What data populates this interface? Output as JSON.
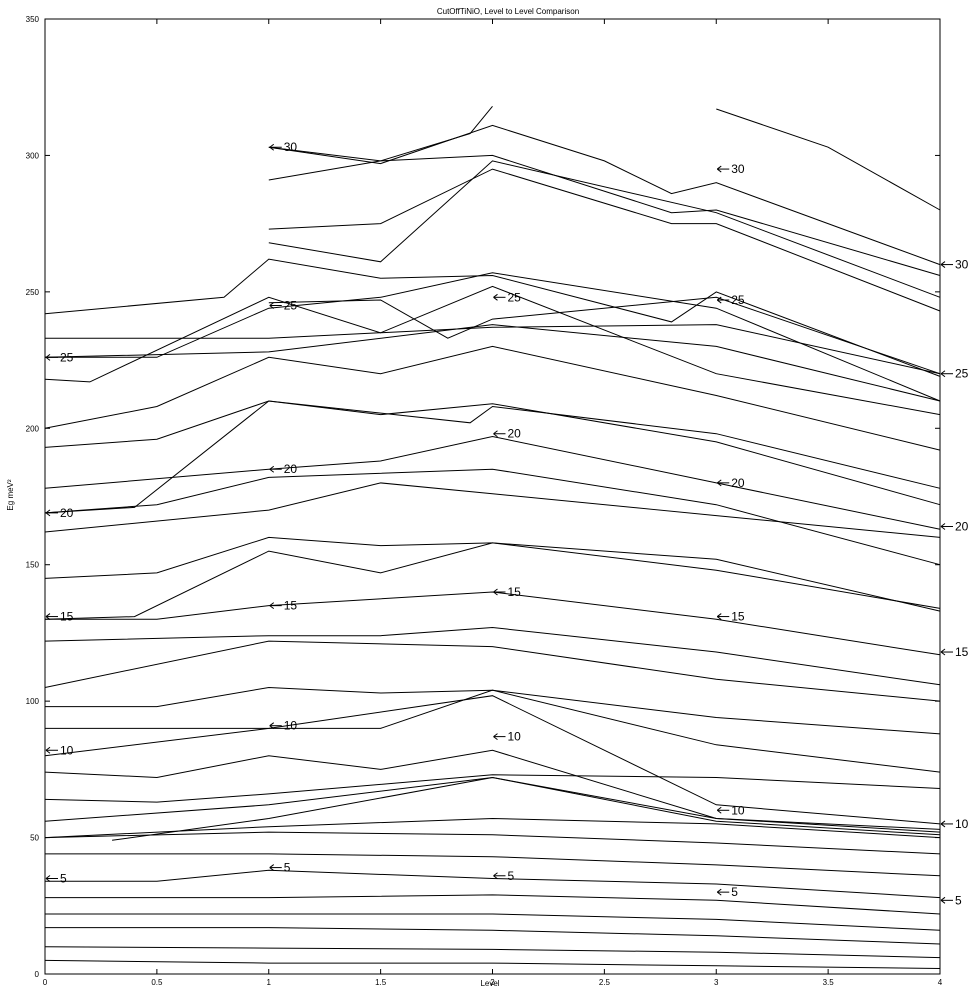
{
  "chart_data": {
    "type": "line",
    "title": "CutOffTiNiO, Level to Level Comparison",
    "xlabel": "Level",
    "ylabel": "Eg meV²",
    "xlim": [
      0,
      4
    ],
    "ylim": [
      0,
      350
    ],
    "xticks": [
      0,
      0.5,
      1,
      1.5,
      2,
      2.5,
      3,
      3.5,
      4
    ],
    "xtick_labels": [
      "0",
      "0.5",
      "1",
      "1.5",
      "2",
      "2.5",
      "3",
      "3.5",
      "4"
    ],
    "yticks": [
      0,
      50,
      100,
      150,
      200,
      250,
      300,
      350
    ],
    "ytick_labels": [
      "0",
      "50",
      "100",
      "150",
      "200",
      "250",
      "300",
      "350"
    ],
    "grid": false,
    "curves": [
      [
        [
          0,
          5
        ],
        [
          1,
          4
        ],
        [
          2,
          4
        ],
        [
          3,
          3
        ],
        [
          4,
          2
        ]
      ],
      [
        [
          0,
          10
        ],
        [
          1,
          9.5
        ],
        [
          2,
          9
        ],
        [
          3,
          8
        ],
        [
          4,
          6
        ]
      ],
      [
        [
          0,
          17
        ],
        [
          1,
          17
        ],
        [
          2,
          16
        ],
        [
          3,
          14
        ],
        [
          4,
          11
        ]
      ],
      [
        [
          0,
          22
        ],
        [
          1,
          22
        ],
        [
          2,
          22
        ],
        [
          3,
          20
        ],
        [
          4,
          16
        ]
      ],
      [
        [
          0,
          28
        ],
        [
          1,
          28
        ],
        [
          2,
          29
        ],
        [
          3,
          27
        ],
        [
          4,
          22
        ]
      ],
      [
        [
          0,
          34
        ],
        [
          0.5,
          34
        ],
        [
          1,
          38
        ],
        [
          2,
          35
        ],
        [
          3,
          33
        ],
        [
          4,
          28
        ]
      ],
      [
        [
          0,
          44
        ],
        [
          1,
          44
        ],
        [
          2,
          43
        ],
        [
          3,
          40
        ],
        [
          4,
          36
        ]
      ],
      [
        [
          0,
          50
        ],
        [
          1,
          52
        ],
        [
          2,
          51
        ],
        [
          3,
          48
        ],
        [
          4,
          44
        ]
      ],
      [
        [
          0,
          50
        ],
        [
          1,
          54
        ],
        [
          2,
          57
        ],
        [
          3,
          55
        ],
        [
          4,
          50
        ]
      ],
      [
        [
          0.3,
          49
        ],
        [
          1,
          57
        ],
        [
          2,
          72
        ],
        [
          3,
          56
        ],
        [
          4,
          51
        ]
      ],
      [
        [
          0,
          56
        ],
        [
          1,
          62
        ],
        [
          2,
          72
        ],
        [
          3,
          57
        ],
        [
          4,
          52
        ]
      ],
      [
        [
          0,
          64
        ],
        [
          0.5,
          63
        ],
        [
          1,
          66
        ],
        [
          2,
          73
        ],
        [
          3,
          72
        ],
        [
          4,
          68
        ]
      ],
      [
        [
          0,
          74
        ],
        [
          0.5,
          72
        ],
        [
          1,
          80
        ],
        [
          1.5,
          75
        ],
        [
          2,
          82
        ],
        [
          3,
          57
        ],
        [
          4,
          53
        ]
      ],
      [
        [
          0,
          80
        ],
        [
          1,
          90
        ],
        [
          2,
          102
        ],
        [
          3,
          62
        ],
        [
          4,
          55
        ]
      ],
      [
        [
          0,
          90
        ],
        [
          1,
          90
        ],
        [
          1.5,
          90
        ],
        [
          2,
          104
        ],
        [
          3,
          84
        ],
        [
          4,
          74
        ]
      ],
      [
        [
          0,
          98
        ],
        [
          0.5,
          98
        ],
        [
          1,
          105
        ],
        [
          1.5,
          103
        ],
        [
          2,
          104
        ],
        [
          3,
          94
        ],
        [
          4,
          88
        ]
      ],
      [
        [
          0,
          105
        ],
        [
          1,
          122
        ],
        [
          2,
          120
        ],
        [
          3,
          108
        ],
        [
          4,
          100
        ]
      ],
      [
        [
          0,
          122
        ],
        [
          1,
          124
        ],
        [
          1.5,
          124
        ],
        [
          2,
          127
        ],
        [
          3,
          118
        ],
        [
          4,
          106
        ]
      ],
      [
        [
          0,
          130
        ],
        [
          0.5,
          130
        ],
        [
          1,
          135
        ],
        [
          2,
          140
        ],
        [
          3,
          130
        ],
        [
          4,
          117
        ]
      ],
      [
        [
          0,
          130
        ],
        [
          0.4,
          131
        ],
        [
          1,
          155
        ],
        [
          1.5,
          147
        ],
        [
          2,
          158
        ],
        [
          3,
          152
        ],
        [
          4,
          133
        ]
      ],
      [
        [
          0,
          145
        ],
        [
          0.5,
          147
        ],
        [
          1,
          160
        ],
        [
          1.5,
          157
        ],
        [
          2,
          158
        ],
        [
          3,
          148
        ],
        [
          4,
          134
        ]
      ],
      [
        [
          0,
          162
        ],
        [
          1,
          170
        ],
        [
          1.5,
          180
        ],
        [
          2,
          176
        ],
        [
          3,
          168
        ],
        [
          4,
          160
        ]
      ],
      [
        [
          0,
          169
        ],
        [
          0.5,
          172
        ],
        [
          1,
          182
        ],
        [
          2,
          185
        ],
        [
          3,
          172
        ],
        [
          4,
          150
        ]
      ],
      [
        [
          0,
          178
        ],
        [
          1,
          185
        ],
        [
          1.5,
          188
        ],
        [
          2,
          197
        ],
        [
          3,
          180
        ],
        [
          4,
          163
        ]
      ],
      [
        [
          0,
          193
        ],
        [
          0.5,
          196
        ],
        [
          1,
          210
        ],
        [
          1.5,
          205
        ],
        [
          2,
          209
        ],
        [
          3,
          195
        ],
        [
          4,
          172
        ]
      ],
      [
        [
          0,
          200
        ],
        [
          0.5,
          208
        ],
        [
          1,
          226
        ],
        [
          1.5,
          220
        ],
        [
          2,
          230
        ],
        [
          3,
          212
        ],
        [
          4,
          192
        ]
      ],
      [
        [
          0,
          169
        ],
        [
          0.4,
          171
        ],
        [
          1,
          210
        ],
        [
          1.9,
          202
        ],
        [
          2,
          208
        ],
        [
          3,
          198
        ],
        [
          4,
          178
        ]
      ],
      [
        [
          0,
          218
        ],
        [
          0.2,
          217
        ],
        [
          1,
          248
        ],
        [
          1.5,
          235
        ],
        [
          2,
          252
        ],
        [
          3,
          220
        ],
        [
          4,
          205
        ]
      ],
      [
        [
          0,
          226
        ],
        [
          1,
          228
        ],
        [
          2,
          238
        ],
        [
          3,
          230
        ],
        [
          4,
          210
        ]
      ],
      [
        [
          0,
          233
        ],
        [
          1,
          233
        ],
        [
          2,
          237
        ],
        [
          3,
          238
        ],
        [
          4,
          220
        ]
      ],
      [
        [
          0,
          242
        ],
        [
          0.8,
          248
        ],
        [
          1,
          262
        ],
        [
          1.5,
          255
        ],
        [
          2,
          256
        ],
        [
          2.8,
          239
        ],
        [
          3,
          250
        ],
        [
          4,
          219
        ]
      ],
      [
        [
          0,
          226
        ],
        [
          0.5,
          226
        ],
        [
          1,
          244
        ],
        [
          1.5,
          248
        ],
        [
          2,
          257
        ],
        [
          3,
          244
        ],
        [
          4,
          210
        ]
      ],
      [
        [
          1,
          246
        ],
        [
          1.5,
          247
        ],
        [
          1.8,
          233
        ],
        [
          2,
          240
        ],
        [
          3,
          248
        ],
        [
          4,
          220
        ]
      ],
      [
        [
          1,
          273
        ],
        [
          1.5,
          275
        ],
        [
          2,
          295
        ],
        [
          2.8,
          275
        ],
        [
          3,
          275
        ],
        [
          4,
          243
        ]
      ],
      [
        [
          1,
          268
        ],
        [
          1.5,
          261
        ],
        [
          2,
          298
        ],
        [
          3,
          279
        ],
        [
          4,
          248
        ]
      ],
      [
        [
          1,
          291
        ],
        [
          1.5,
          298
        ],
        [
          2,
          300
        ],
        [
          2.8,
          279
        ],
        [
          3,
          280
        ],
        [
          4,
          256
        ]
      ],
      [
        [
          1,
          303
        ],
        [
          1.5,
          297
        ],
        [
          2,
          311
        ],
        [
          2.5,
          298
        ],
        [
          2.8,
          286
        ],
        [
          3,
          290
        ],
        [
          4,
          260
        ]
      ],
      [
        [
          1,
          303
        ],
        [
          1.5,
          298
        ],
        [
          1.9,
          308
        ],
        [
          2,
          318
        ]
      ],
      [
        [
          3,
          317
        ],
        [
          3.5,
          303
        ],
        [
          4,
          280
        ]
      ]
    ],
    "level_labels": [
      {
        "x": 0,
        "y": 35,
        "text": "5"
      },
      {
        "x": 1,
        "y": 39,
        "text": "5"
      },
      {
        "x": 2,
        "y": 36,
        "text": "5"
      },
      {
        "x": 3,
        "y": 30,
        "text": "5"
      },
      {
        "x": 4,
        "y": 27,
        "text": "5"
      },
      {
        "x": 0,
        "y": 82,
        "text": "10"
      },
      {
        "x": 1,
        "y": 91,
        "text": "10"
      },
      {
        "x": 2,
        "y": 87,
        "text": "10"
      },
      {
        "x": 3,
        "y": 60,
        "text": "10"
      },
      {
        "x": 4,
        "y": 55,
        "text": "10"
      },
      {
        "x": 0,
        "y": 131,
        "text": "15"
      },
      {
        "x": 1,
        "y": 135,
        "text": "15"
      },
      {
        "x": 2,
        "y": 140,
        "text": "15"
      },
      {
        "x": 3,
        "y": 131,
        "text": "15"
      },
      {
        "x": 4,
        "y": 118,
        "text": "15"
      },
      {
        "x": 0,
        "y": 169,
        "text": "20"
      },
      {
        "x": 1,
        "y": 185,
        "text": "20"
      },
      {
        "x": 2,
        "y": 198,
        "text": "20"
      },
      {
        "x": 3,
        "y": 180,
        "text": "20"
      },
      {
        "x": 4,
        "y": 164,
        "text": "20"
      },
      {
        "x": 0,
        "y": 226,
        "text": "25"
      },
      {
        "x": 1,
        "y": 245,
        "text": "25"
      },
      {
        "x": 2,
        "y": 248,
        "text": "25"
      },
      {
        "x": 3,
        "y": 247,
        "text": "25"
      },
      {
        "x": 4,
        "y": 220,
        "text": "25"
      },
      {
        "x": 1,
        "y": 303,
        "text": "30"
      },
      {
        "x": 3,
        "y": 295,
        "text": "30"
      },
      {
        "x": 4,
        "y": 260,
        "text": "30"
      }
    ]
  }
}
